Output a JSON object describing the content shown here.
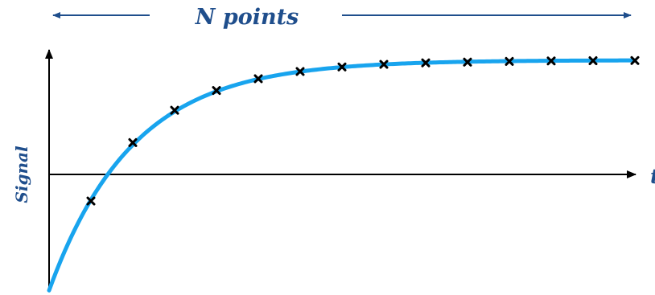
{
  "header": {
    "label": "N points"
  },
  "axes": {
    "x_label": "t",
    "y_label": "Signal"
  },
  "colors": {
    "label": "#1f4e8c",
    "curve": "#18a4ee",
    "axis": "#000000",
    "marker": "#000000"
  },
  "chart_data": {
    "type": "scatter",
    "description_curve": "saturation recovery",
    "xlim": [
      0,
      14
    ],
    "ylim": [
      -1.4,
      1.4
    ],
    "x_axis_at_y": 0,
    "series": [
      {
        "markers": "x",
        "x": [
          1,
          2,
          3,
          4,
          5,
          6,
          7,
          8,
          9,
          10,
          11,
          12,
          13,
          14
        ],
        "y": [
          -0.305,
          0.365,
          0.736,
          0.962,
          1.097,
          1.18,
          1.232,
          1.262,
          1.279,
          1.288,
          1.296,
          1.301,
          1.304,
          1.306
        ]
      }
    ]
  }
}
